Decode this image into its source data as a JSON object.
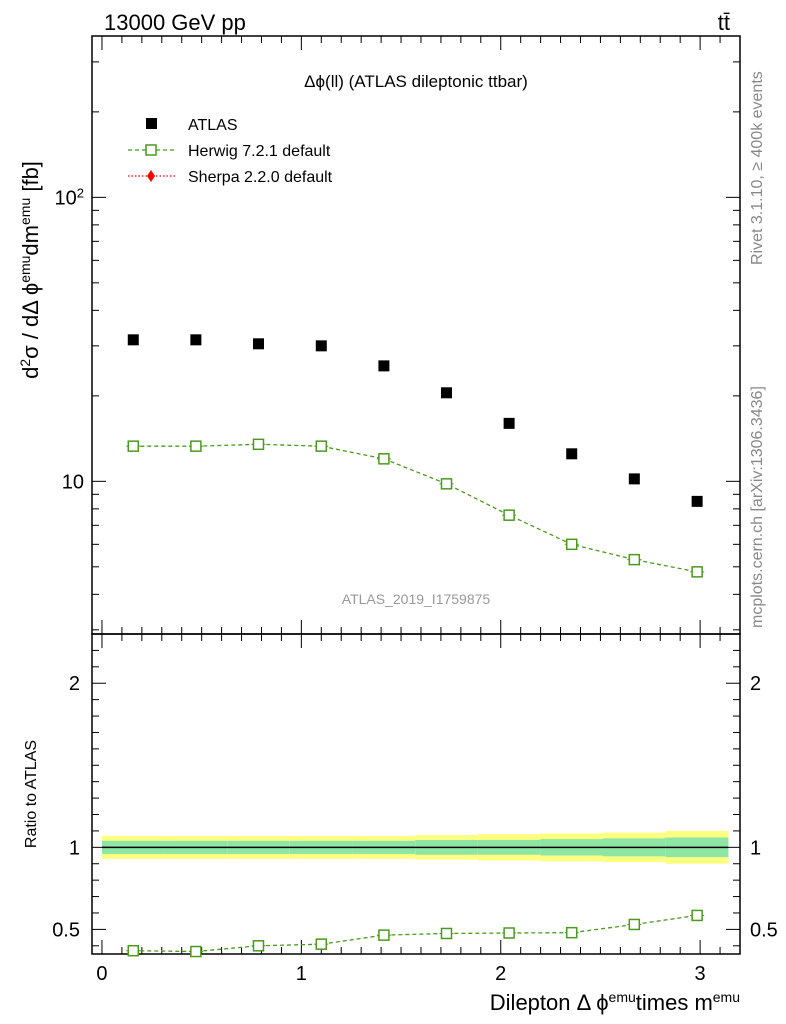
{
  "header": {
    "energy_label": "13000 GeV pp",
    "process_label": "tt̄"
  },
  "side_labels": {
    "rivet": "Rivet 3.1.10, ≥ 400k events",
    "mcplots": "mcplots.cern.ch [arXiv:1306.3436]"
  },
  "chart_data": [
    {
      "type": "scatter",
      "panel": "main",
      "title": "Δϕ(ll) (ATLAS dileptonic ttbar)",
      "ylabel": "d²σ / dΔ ϕ^emu dm^emu [fb]",
      "yscale": "log",
      "ylim": [
        2.9,
        370
      ],
      "xlim": [
        -0.05,
        3.2
      ],
      "watermark": "ATLAS_2019_I1759875",
      "y_tick_labels": [
        "10",
        "10²"
      ],
      "x": [
        0.157,
        0.471,
        0.785,
        1.1,
        1.414,
        1.728,
        2.042,
        2.356,
        2.67,
        2.985
      ],
      "series": [
        {
          "name": "ATLAS",
          "marker": "filled-square",
          "color": "#000000",
          "values": [
            31.5,
            31.5,
            30.5,
            30.0,
            25.5,
            20.5,
            16.0,
            12.5,
            10.2,
            8.5
          ]
        },
        {
          "name": "Herwig 7.2.1 default",
          "marker": "open-square",
          "color": "#4a9a1e",
          "line": "dashed",
          "values": [
            13.3,
            13.3,
            13.5,
            13.3,
            12.0,
            9.8,
            7.6,
            6.0,
            5.3,
            4.8
          ]
        },
        {
          "name": "Sherpa 2.2.0 default",
          "marker": "diamond",
          "color": "#ff0000",
          "line": "dotted",
          "values": []
        }
      ],
      "legend_position": "top-left"
    },
    {
      "type": "line",
      "panel": "ratio",
      "ylabel": "Ratio to ATLAS",
      "xlabel": "Dilepton Δ ϕ^emu times m^emu",
      "ylim": [
        0.35,
        2.3
      ],
      "xlim": [
        -0.05,
        3.2
      ],
      "y_ticks": [
        0.5,
        1,
        2
      ],
      "y_tick_labels": [
        "0.5",
        "1",
        "2"
      ],
      "x_ticks": [
        0,
        1,
        2,
        3
      ],
      "x_tick_labels": [
        "0",
        "1",
        "2",
        "3"
      ],
      "x": [
        0.157,
        0.471,
        0.785,
        1.1,
        1.414,
        1.728,
        2.042,
        2.356,
        2.67,
        2.985
      ],
      "series": [
        {
          "name": "Herwig 7.2.1 default",
          "color": "#4a9a1e",
          "line": "dashed",
          "values": [
            0.37,
            0.365,
            0.4,
            0.41,
            0.465,
            0.475,
            0.478,
            0.48,
            0.53,
            0.585
          ]
        }
      ],
      "band": {
        "x_edges": [
          0.0,
          0.314,
          0.628,
          0.942,
          1.257,
          1.571,
          1.885,
          2.199,
          2.513,
          2.827,
          3.142
        ],
        "inner_halfwidth": [
          0.04,
          0.04,
          0.04,
          0.04,
          0.04,
          0.045,
          0.045,
          0.05,
          0.055,
          0.06
        ],
        "outer_halfwidth": [
          0.07,
          0.07,
          0.07,
          0.07,
          0.07,
          0.075,
          0.08,
          0.085,
          0.09,
          0.1
        ],
        "inner_color": "#8ee6a5",
        "outer_color": "#ffff80"
      }
    }
  ]
}
